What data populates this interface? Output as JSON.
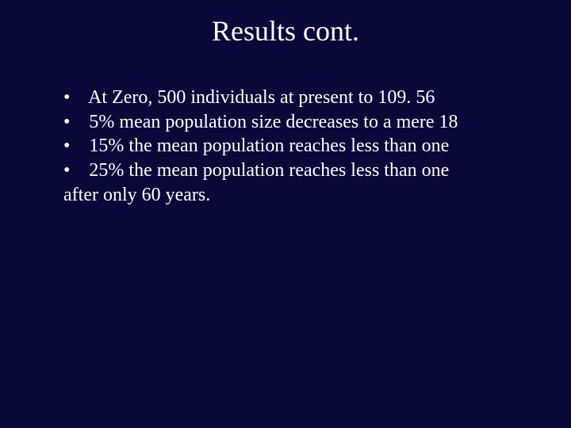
{
  "background_color": "#0a0a3a",
  "text_color": "#ffffff",
  "font_family": "Times New Roman",
  "title": {
    "text": "Results cont.",
    "fontsize": 36,
    "align": "center"
  },
  "body": {
    "fontsize": 24,
    "bullet_char": "•",
    "bullets": [
      {
        "text": " At Zero, 500 individuals at present to 109. 56"
      },
      {
        "text": "  5%  mean population size decreases to a mere 18"
      },
      {
        "text": "   15% the mean population reaches less than one"
      },
      {
        "text": "   25% the mean population reaches less than one"
      }
    ],
    "wrap_text": "after only 60 years."
  }
}
